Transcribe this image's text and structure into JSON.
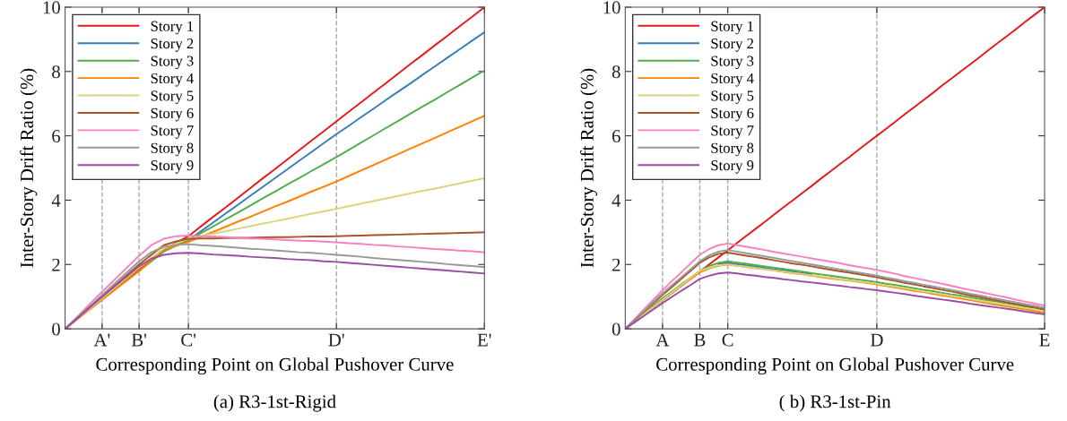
{
  "chart_data": [
    {
      "type": "line",
      "title": "(a) R3-1st-Rigid",
      "xlabel": "Corresponding Point on Global Pushover Curve",
      "ylabel": "Inter-Story Drift Ratio (%)",
      "categories": [
        null,
        null,
        null,
        "A'",
        null,
        null,
        "B'",
        null,
        null,
        null,
        "C'",
        null,
        null,
        null,
        null,
        null,
        null,
        null,
        null,
        null,
        null,
        null,
        "D'",
        null,
        null,
        null,
        null,
        null,
        null,
        null,
        null,
        null,
        null,
        null,
        "E'"
      ],
      "ylim": [
        0,
        10
      ],
      "yticks": [
        0,
        2,
        4,
        6,
        8,
        10
      ],
      "legend": "top left",
      "grid": false,
      "marker": "none",
      "line_style": "solid",
      "ref_lines": [
        {
          "axis": "x",
          "value": "A'",
          "color": "#aaaaaa",
          "line_style": "dashed"
        },
        {
          "axis": "x",
          "value": "B'",
          "color": "#aaaaaa",
          "line_style": "dashed"
        },
        {
          "axis": "x",
          "value": "C'",
          "color": "#aaaaaa",
          "line_style": "dashed"
        },
        {
          "axis": "x",
          "value": "D'",
          "color": "#aaaaaa",
          "line_style": "dashed"
        }
      ],
      "series": [
        {
          "name": "Story 1",
          "color": "#e41a1c",
          "values": [
            0,
            0.32,
            0.63,
            0.95,
            1.25,
            1.55,
            1.85,
            2.15,
            2.45,
            2.67,
            2.88,
            3.18,
            3.48,
            3.77,
            4.07,
            4.37,
            4.67,
            4.96,
            5.26,
            5.56,
            5.86,
            6.15,
            6.45,
            6.75,
            7.04,
            7.34,
            7.63,
            7.93,
            8.23,
            8.52,
            8.82,
            9.11,
            9.41,
            9.7,
            10
          ]
        },
        {
          "name": "Story 2",
          "color": "#377eb8",
          "values": [
            null,
            null,
            null,
            null,
            null,
            null,
            null,
            null,
            null,
            2.6,
            2.75,
            3.03,
            3.3,
            3.58,
            3.85,
            4.13,
            4.4,
            4.68,
            4.95,
            5.23,
            5.5,
            5.78,
            6.05,
            6.31,
            6.58,
            6.84,
            7.11,
            7.37,
            7.63,
            7.9,
            8.16,
            8.43,
            8.69,
            8.96,
            9.22
          ]
        },
        {
          "name": "Story 3",
          "color": "#4daf4a",
          "values": [
            null,
            null,
            null,
            null,
            null,
            1.5,
            1.8,
            2.1,
            2.4,
            2.58,
            2.75,
            2.97,
            3.18,
            3.4,
            3.61,
            3.83,
            4.05,
            4.26,
            4.48,
            4.69,
            4.91,
            5.12,
            5.34,
            5.56,
            5.79,
            6.01,
            6.24,
            6.46,
            6.69,
            6.91,
            7.13,
            7.36,
            7.58,
            7.81,
            8.03
          ]
        },
        {
          "name": "Story 4",
          "color": "#ff7f00",
          "values": [
            0,
            0.3,
            0.6,
            0.9,
            1.2,
            1.5,
            1.8,
            2.13,
            2.45,
            2.58,
            2.7,
            2.86,
            3.01,
            3.17,
            3.33,
            3.48,
            3.64,
            3.8,
            3.95,
            4.11,
            4.27,
            4.42,
            4.58,
            4.75,
            4.92,
            5.09,
            5.26,
            5.43,
            5.6,
            5.77,
            5.94,
            6.11,
            6.28,
            6.45,
            6.62
          ]
        },
        {
          "name": "Story 5",
          "color": "#dcd27a",
          "values": [
            0,
            0.32,
            0.63,
            0.95,
            1.27,
            1.58,
            1.9,
            2.2,
            2.5,
            2.65,
            2.8,
            2.88,
            2.96,
            3.03,
            3.11,
            3.19,
            3.27,
            3.34,
            3.42,
            3.5,
            3.58,
            3.65,
            3.73,
            3.81,
            3.89,
            3.97,
            4.05,
            4.13,
            4.21,
            4.29,
            4.36,
            4.44,
            4.52,
            4.6,
            4.68
          ]
        },
        {
          "name": "Story 6",
          "color": "#a65628",
          "values": [
            0,
            0.33,
            0.67,
            1.0,
            1.33,
            1.67,
            2.0,
            2.3,
            2.6,
            2.72,
            2.8,
            2.81,
            2.81,
            2.82,
            2.83,
            2.83,
            2.84,
            2.85,
            2.85,
            2.86,
            2.87,
            2.87,
            2.88,
            2.89,
            2.9,
            2.91,
            2.92,
            2.93,
            2.94,
            2.95,
            2.96,
            2.97,
            2.98,
            2.99,
            3.0
          ]
        },
        {
          "name": "Story 7",
          "color": "#f781bf",
          "values": [
            0,
            0.38,
            0.77,
            1.15,
            1.52,
            1.9,
            2.27,
            2.6,
            2.8,
            2.88,
            2.9,
            2.88,
            2.87,
            2.85,
            2.83,
            2.81,
            2.8,
            2.78,
            2.76,
            2.74,
            2.73,
            2.71,
            2.69,
            2.66,
            2.64,
            2.61,
            2.59,
            2.56,
            2.54,
            2.51,
            2.48,
            2.46,
            2.43,
            2.41,
            2.38
          ]
        },
        {
          "name": "Story 8",
          "color": "#999999",
          "values": [
            0,
            0.35,
            0.7,
            1.05,
            1.4,
            1.75,
            2.1,
            2.38,
            2.55,
            2.61,
            2.63,
            2.6,
            2.58,
            2.55,
            2.52,
            2.49,
            2.47,
            2.44,
            2.41,
            2.38,
            2.36,
            2.33,
            2.3,
            2.27,
            2.24,
            2.2,
            2.17,
            2.14,
            2.11,
            2.08,
            2.05,
            2.01,
            1.98,
            1.95,
            1.92
          ]
        },
        {
          "name": "Story 9",
          "color": "#984ea3",
          "values": [
            0,
            0.33,
            0.67,
            1.0,
            1.32,
            1.63,
            1.95,
            2.18,
            2.3,
            2.35,
            2.36,
            2.34,
            2.31,
            2.29,
            2.27,
            2.24,
            2.22,
            2.2,
            2.17,
            2.15,
            2.13,
            2.1,
            2.08,
            2.05,
            2.02,
            1.99,
            1.96,
            1.93,
            1.9,
            1.87,
            1.84,
            1.81,
            1.78,
            1.75,
            1.72
          ]
        }
      ]
    },
    {
      "type": "line",
      "title": "( b) R3-1st-Pin",
      "xlabel": "Corresponding Point on Global Pushover Curve",
      "ylabel": "Inter-Story Drift Ratio (%)",
      "categories": [
        null,
        null,
        null,
        null,
        "A",
        null,
        null,
        null,
        "B",
        null,
        null,
        "C",
        null,
        null,
        null,
        null,
        null,
        null,
        null,
        null,
        null,
        null,
        null,
        null,
        null,
        null,
        null,
        "D",
        null,
        null,
        null,
        null,
        null,
        null,
        null,
        null,
        null,
        null,
        null,
        null,
        null,
        null,
        null,
        null,
        null,
        "E"
      ],
      "ylim": [
        0,
        10
      ],
      "yticks": [
        0,
        2,
        4,
        6,
        8,
        10
      ],
      "legend": "top left",
      "grid": false,
      "marker": "none",
      "line_style": "solid",
      "ref_lines": [
        {
          "axis": "x",
          "value": "A",
          "color": "#aaaaaa",
          "line_style": "dashed"
        },
        {
          "axis": "x",
          "value": "B",
          "color": "#aaaaaa",
          "line_style": "dashed"
        },
        {
          "axis": "x",
          "value": "C",
          "color": "#aaaaaa",
          "line_style": "dashed"
        },
        {
          "axis": "x",
          "value": "D",
          "color": "#aaaaaa",
          "line_style": "dashed"
        }
      ],
      "series": [
        {
          "name": "Story 1",
          "color": "#e41a1c",
          "values": [
            null,
            null,
            0.44,
            0.67,
            0.89,
            1.11,
            1.33,
            1.56,
            1.78,
            2.0,
            2.22,
            2.44,
            2.67,
            2.89,
            3.11,
            3.33,
            3.56,
            3.78,
            4.0,
            4.22,
            4.44,
            4.67,
            4.89,
            5.11,
            5.33,
            5.56,
            5.78,
            6.0,
            6.22,
            6.44,
            6.67,
            6.89,
            7.11,
            7.33,
            7.56,
            7.78,
            8.0,
            8.22,
            8.44,
            8.67,
            8.89,
            9.11,
            9.33,
            9.56,
            9.78,
            10
          ]
        },
        {
          "name": "Story 2",
          "color": "#377eb8",
          "values": [
            null,
            null,
            null,
            null,
            null,
            null,
            null,
            null,
            null,
            null,
            2.0,
            2.05,
            2.01,
            1.97,
            1.93,
            1.89,
            1.85,
            1.81,
            1.77,
            1.73,
            1.69,
            null,
            null,
            null,
            null,
            null,
            null,
            null,
            null,
            null,
            null,
            null,
            null,
            null,
            null,
            null,
            null,
            null,
            null,
            null,
            null,
            null,
            null,
            null,
            null,
            null
          ]
        },
        {
          "name": "Story 3",
          "color": "#4daf4a",
          "values": [
            0,
            0.24,
            0.48,
            0.71,
            0.95,
            1.16,
            1.38,
            1.59,
            1.8,
            1.95,
            2.05,
            2.1,
            2.06,
            2.02,
            1.98,
            1.94,
            1.9,
            1.86,
            1.82,
            1.78,
            1.73,
            1.69,
            1.65,
            1.61,
            1.57,
            1.53,
            1.49,
            1.45,
            1.4,
            1.36,
            1.31,
            1.26,
            1.21,
            1.17,
            1.12,
            1.07,
            1.03,
            0.98,
            0.93,
            0.88,
            0.84,
            0.79,
            0.74,
            0.69,
            0.65,
            0.6
          ]
        },
        {
          "name": "Story 4",
          "color": "#ff7f00",
          "values": [
            null,
            null,
            0.45,
            0.68,
            0.9,
            1.11,
            1.33,
            1.54,
            1.75,
            1.88,
            1.96,
            2.0,
            1.96,
            1.92,
            1.88,
            1.85,
            1.81,
            1.77,
            1.73,
            1.69,
            1.65,
            1.61,
            1.57,
            1.53,
            1.5,
            1.46,
            1.42,
            1.38,
            1.33,
            1.28,
            1.23,
            1.18,
            1.14,
            1.09,
            1.04,
            0.99,
            0.94,
            0.89,
            0.84,
            0.79,
            0.74,
            0.7,
            0.65,
            0.6,
            0.55,
            0.5
          ]
        },
        {
          "name": "Story 5",
          "color": "#dcd27a",
          "values": [
            0,
            0.23,
            0.45,
            0.68,
            0.9,
            1.13,
            1.35,
            1.58,
            1.8,
            1.9,
            1.97,
            2.0,
            1.96,
            1.93,
            1.89,
            1.85,
            1.81,
            1.78,
            1.74,
            1.7,
            1.66,
            1.63,
            1.59,
            1.55,
            1.51,
            1.48,
            1.44,
            1.4,
            1.35,
            1.31,
            1.26,
            1.21,
            1.16,
            1.12,
            1.07,
            1.02,
            0.98,
            0.93,
            0.88,
            0.83,
            0.79,
            0.74,
            0.69,
            0.64,
            0.6,
            0.55
          ]
        },
        {
          "name": "Story 6",
          "color": "#a65628",
          "values": [
            0,
            0.26,
            0.53,
            0.79,
            1.05,
            1.3,
            1.55,
            1.8,
            2.05,
            2.22,
            2.33,
            2.37,
            2.32,
            2.27,
            2.23,
            2.18,
            2.13,
            2.08,
            2.03,
            1.99,
            1.94,
            1.89,
            1.84,
            1.79,
            1.75,
            1.7,
            1.65,
            1.6,
            1.54,
            1.49,
            1.43,
            1.38,
            1.32,
            1.27,
            1.21,
            1.16,
            1.1,
            1.04,
            0.99,
            0.93,
            0.88,
            0.82,
            0.77,
            0.71,
            0.66,
            0.6
          ]
        },
        {
          "name": "Story 7",
          "color": "#f781bf",
          "values": [
            0,
            0.3,
            0.6,
            0.9,
            1.2,
            1.48,
            1.75,
            2.03,
            2.3,
            2.48,
            2.6,
            2.65,
            2.6,
            2.55,
            2.5,
            2.45,
            2.39,
            2.34,
            2.29,
            2.24,
            2.19,
            2.14,
            2.09,
            2.04,
            1.98,
            1.93,
            1.88,
            1.83,
            1.77,
            1.71,
            1.64,
            1.58,
            1.52,
            1.46,
            1.4,
            1.34,
            1.27,
            1.21,
            1.15,
            1.09,
            1.03,
            0.97,
            0.9,
            0.84,
            0.78,
            0.72
          ]
        },
        {
          "name": "Story 8",
          "color": "#999999",
          "values": [
            0,
            0.28,
            0.55,
            0.83,
            1.1,
            1.35,
            1.6,
            1.85,
            2.1,
            2.28,
            2.4,
            2.45,
            2.4,
            2.35,
            2.3,
            2.25,
            2.2,
            2.15,
            2.1,
            2.05,
            2.0,
            1.95,
            1.9,
            1.85,
            1.8,
            1.75,
            1.7,
            1.65,
            1.59,
            1.54,
            1.48,
            1.43,
            1.37,
            1.32,
            1.26,
            1.21,
            1.15,
            1.09,
            1.04,
            0.98,
            0.93,
            0.87,
            0.82,
            0.76,
            0.71,
            0.65
          ]
        },
        {
          "name": "Story 9",
          "color": "#984ea3",
          "values": [
            0,
            0.2,
            0.4,
            0.6,
            0.8,
            0.99,
            1.18,
            1.36,
            1.55,
            1.65,
            1.72,
            1.75,
            1.72,
            1.68,
            1.65,
            1.61,
            1.58,
            1.54,
            1.51,
            1.47,
            1.44,
            1.41,
            1.37,
            1.34,
            1.3,
            1.27,
            1.23,
            1.2,
            1.16,
            1.12,
            1.08,
            1.03,
            0.99,
            0.95,
            0.91,
            0.87,
            0.83,
            0.78,
            0.74,
            0.7,
            0.66,
            0.62,
            0.58,
            0.53,
            0.49,
            0.45
          ]
        }
      ]
    }
  ]
}
